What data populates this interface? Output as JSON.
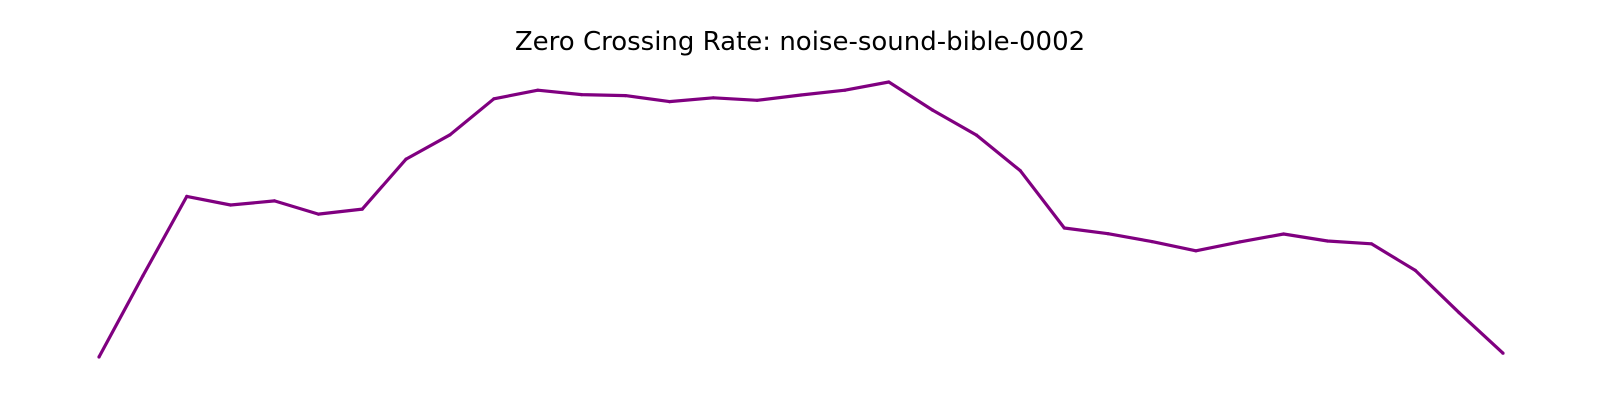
{
  "chart_data": {
    "type": "line",
    "title": "Zero Crossing Rate: noise-sound-bible-0002",
    "xlabel": "",
    "ylabel": "",
    "axes_visible": false,
    "grid": false,
    "series": [
      {
        "color": "#800080",
        "x": [
          0,
          1,
          2,
          3,
          4,
          5,
          6,
          7,
          8,
          9,
          10,
          11,
          12,
          13,
          14,
          15,
          16,
          17,
          18,
          19,
          20,
          21,
          22,
          23,
          24,
          25,
          26,
          27,
          28,
          29,
          30,
          31,
          32
        ],
        "values": [
          0.0,
          0.257,
          0.508,
          0.481,
          0.494,
          0.452,
          0.468,
          0.626,
          0.703,
          0.817,
          0.844,
          0.83,
          0.827,
          0.808,
          0.82,
          0.812,
          0.829,
          0.844,
          0.87,
          0.781,
          0.702,
          0.589,
          0.408,
          0.39,
          0.365,
          0.336,
          0.364,
          0.389,
          0.367,
          0.358,
          0.274,
          0.14,
          0.012
        ]
      }
    ],
    "xlim": [
      0,
      32
    ],
    "ylim": [
      0,
      0.87
    ]
  }
}
